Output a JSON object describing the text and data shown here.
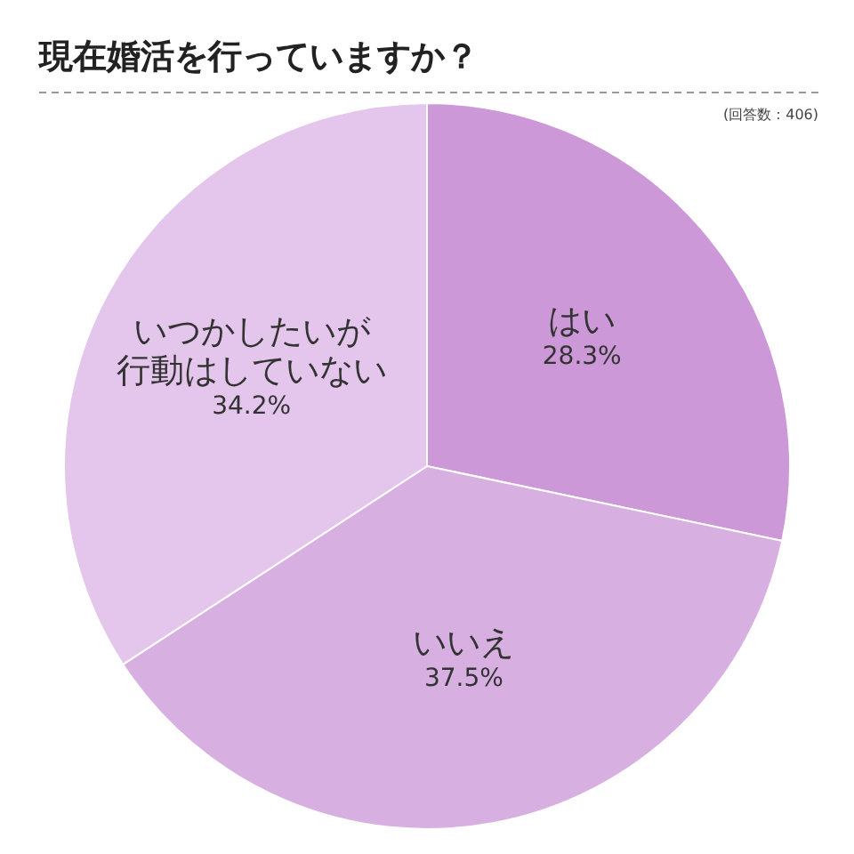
{
  "chart_data": {
    "type": "pie",
    "title": "現在婚活を行っていますか？",
    "subtitle": "(回答数：406)",
    "categories": [
      "はい",
      "いいえ",
      "いつかしたいが行動はしていない"
    ],
    "values": [
      28.3,
      37.5,
      34.2
    ],
    "colors": [
      "#cc98d8",
      "#d8afe1",
      "#e4c5eb"
    ],
    "value_labels": [
      "28.3%",
      "37.5%",
      "34.2%"
    ]
  }
}
